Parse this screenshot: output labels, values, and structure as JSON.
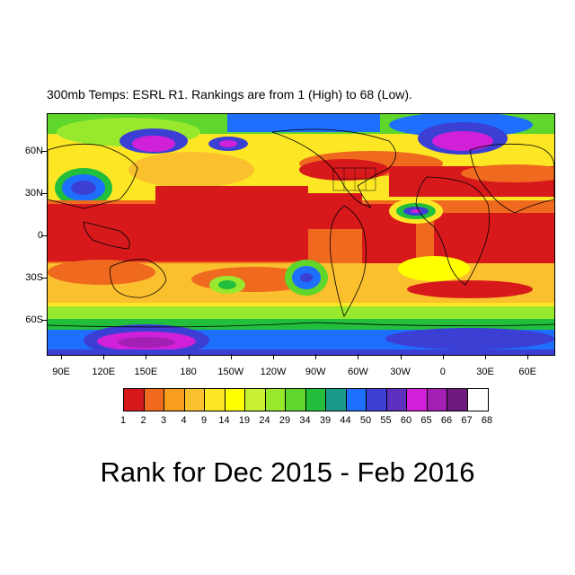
{
  "subtitle": "300mb Temps: ESRL R1. Rankings are from 1 (High) to 68 (Low).",
  "title": "Rank for Dec 2015 - Feb 2016",
  "map": {
    "lon_ticks": [
      "90E",
      "120E",
      "150E",
      "180",
      "150W",
      "120W",
      "90W",
      "60W",
      "30W",
      "0",
      "30E",
      "60E"
    ],
    "lat_ticks": [
      "60N",
      "30N",
      "0",
      "30S",
      "60S"
    ]
  },
  "colorbar": {
    "labels": [
      "1",
      "2",
      "3",
      "4",
      "9",
      "14",
      "19",
      "24",
      "29",
      "34",
      "39",
      "44",
      "50",
      "55",
      "60",
      "65",
      "66",
      "67",
      "68"
    ],
    "colors": [
      "#d7191c",
      "#ef6a1f",
      "#f99d1e",
      "#fbc02d",
      "#fde725",
      "#ffff00",
      "#c8f035",
      "#98e82d",
      "#5fd62b",
      "#21bf3c",
      "#1a9a8a",
      "#1f6fff",
      "#3b3fd4",
      "#5f2fbf",
      "#d020d8",
      "#a41fb4",
      "#6e1a7e",
      "#ffffff"
    ]
  }
}
